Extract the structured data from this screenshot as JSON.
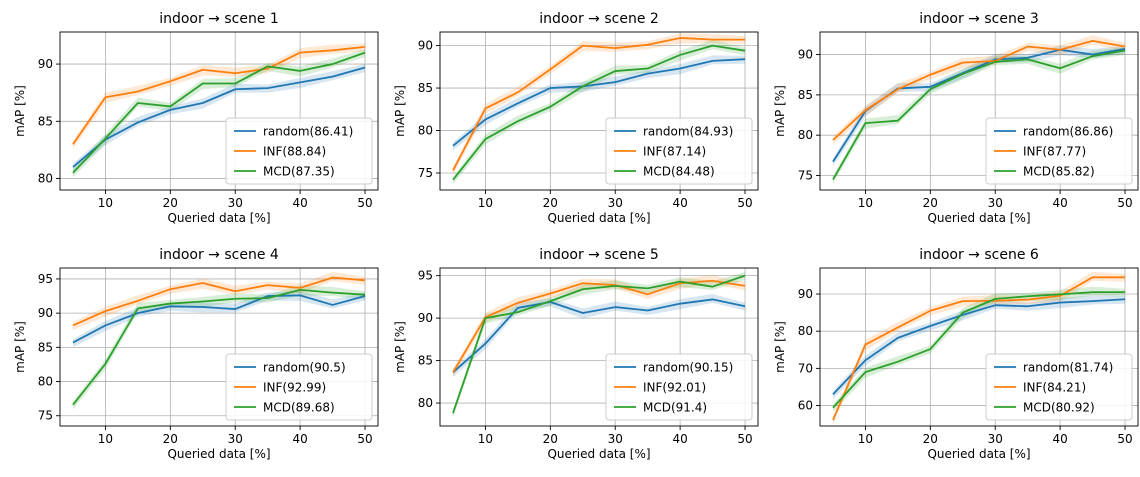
{
  "chart_data": [
    {
      "type": "line",
      "title": "indoor → scene 1",
      "xlabel": "Queried data [%]",
      "ylabel": "mAP [%]",
      "x": [
        5,
        10,
        15,
        20,
        25,
        30,
        35,
        40,
        45,
        50
      ],
      "xlim": [
        3,
        52
      ],
      "ylim": [
        79,
        92.8
      ],
      "xticks": [
        10,
        20,
        30,
        40,
        50
      ],
      "yticks": [
        80,
        85,
        90
      ],
      "grid": true,
      "legend_position": "lower-right",
      "series": [
        {
          "name": "random(86.41)",
          "color": "#1f77b4",
          "values": [
            81.0,
            83.4,
            84.9,
            86.0,
            86.6,
            87.8,
            87.9,
            88.4,
            88.9,
            89.7
          ]
        },
        {
          "name": "INF(88.84)",
          "color": "#ff7f0e",
          "values": [
            83.0,
            87.1,
            87.6,
            88.5,
            89.5,
            89.2,
            89.6,
            91.0,
            91.2,
            91.5
          ]
        },
        {
          "name": "MCD(87.35)",
          "color": "#2ca02c",
          "values": [
            80.5,
            83.5,
            86.6,
            86.3,
            88.3,
            88.3,
            89.8,
            89.4,
            90.0,
            91.0
          ]
        }
      ]
    },
    {
      "type": "line",
      "title": "indoor → scene 2",
      "xlabel": "Queried data [%]",
      "ylabel": "mAP [%]",
      "x": [
        5,
        10,
        15,
        20,
        25,
        30,
        35,
        40,
        45,
        50
      ],
      "xlim": [
        3,
        52
      ],
      "ylim": [
        73,
        91.6
      ],
      "xticks": [
        10,
        20,
        30,
        40,
        50
      ],
      "yticks": [
        75,
        80,
        85,
        90
      ],
      "grid": true,
      "legend_position": "lower-right",
      "series": [
        {
          "name": "random(84.93)",
          "color": "#1f77b4",
          "values": [
            78.2,
            81.3,
            83.2,
            85.0,
            85.2,
            85.7,
            86.7,
            87.3,
            88.2,
            88.4
          ]
        },
        {
          "name": "INF(87.14)",
          "color": "#ff7f0e",
          "values": [
            75.3,
            82.6,
            84.5,
            87.2,
            90.0,
            89.7,
            90.1,
            90.9,
            90.7,
            90.7
          ]
        },
        {
          "name": "MCD(84.48)",
          "color": "#2ca02c",
          "values": [
            74.2,
            79.0,
            81.1,
            82.8,
            85.2,
            87.0,
            87.3,
            88.9,
            90.0,
            89.4
          ]
        }
      ]
    },
    {
      "type": "line",
      "title": "indoor → scene 3",
      "xlabel": "Queried data [%]",
      "ylabel": "mAP [%]",
      "x": [
        5,
        10,
        15,
        20,
        25,
        30,
        35,
        40,
        45,
        50
      ],
      "xlim": [
        3,
        52
      ],
      "ylim": [
        73.2,
        92.8
      ],
      "xticks": [
        10,
        20,
        30,
        40,
        50
      ],
      "yticks": [
        75,
        80,
        85,
        90
      ],
      "grid": true,
      "legend_position": "lower-right",
      "series": [
        {
          "name": "random(86.86)",
          "color": "#1f77b4",
          "values": [
            76.7,
            83.0,
            85.8,
            86.0,
            87.7,
            89.4,
            89.6,
            90.6,
            90.0,
            90.7
          ]
        },
        {
          "name": "INF(87.77)",
          "color": "#ff7f0e",
          "values": [
            79.4,
            83.1,
            85.7,
            87.5,
            89.0,
            89.2,
            91.0,
            90.6,
            91.7,
            91.0
          ]
        },
        {
          "name": "MCD(85.82)",
          "color": "#2ca02c",
          "values": [
            74.5,
            81.5,
            81.8,
            85.7,
            87.6,
            89.1,
            89.4,
            88.3,
            89.8,
            90.5
          ]
        }
      ]
    },
    {
      "type": "line",
      "title": "indoor → scene 4",
      "xlabel": "Queried data [%]",
      "ylabel": "mAP [%]",
      "x": [
        5,
        10,
        15,
        20,
        25,
        30,
        35,
        40,
        45,
        50
      ],
      "xlim": [
        3,
        52
      ],
      "ylim": [
        73.5,
        96.6
      ],
      "xticks": [
        10,
        20,
        30,
        40,
        50
      ],
      "yticks": [
        75,
        80,
        85,
        90,
        95
      ],
      "grid": true,
      "legend_position": "lower-right",
      "series": [
        {
          "name": "random(90.5)",
          "color": "#1f77b4",
          "values": [
            85.7,
            88.2,
            90.0,
            91.0,
            90.9,
            90.6,
            92.5,
            92.6,
            91.2,
            92.5
          ]
        },
        {
          "name": "INF(92.99)",
          "color": "#ff7f0e",
          "values": [
            88.2,
            90.3,
            91.8,
            93.5,
            94.4,
            93.2,
            94.1,
            93.7,
            95.2,
            94.8
          ]
        },
        {
          "name": "MCD(89.68)",
          "color": "#2ca02c",
          "values": [
            76.6,
            82.6,
            90.7,
            91.4,
            91.7,
            92.1,
            92.2,
            93.4,
            93.0,
            92.7
          ]
        }
      ]
    },
    {
      "type": "line",
      "title": "indoor → scene 5",
      "xlabel": "Queried data [%]",
      "ylabel": "mAP [%]",
      "x": [
        5,
        10,
        15,
        20,
        25,
        30,
        35,
        40,
        45,
        50
      ],
      "xlim": [
        3,
        52
      ],
      "ylim": [
        77.3,
        95.9
      ],
      "xticks": [
        10,
        20,
        30,
        40,
        50
      ],
      "yticks": [
        80,
        85,
        90,
        95
      ],
      "grid": true,
      "legend_position": "lower-right",
      "series": [
        {
          "name": "random(90.15)",
          "color": "#1f77b4",
          "values": [
            83.6,
            87.0,
            91.2,
            91.9,
            90.6,
            91.3,
            90.9,
            91.7,
            92.2,
            91.4
          ]
        },
        {
          "name": "INF(92.01)",
          "color": "#ff7f0e",
          "values": [
            83.6,
            90.1,
            91.8,
            92.9,
            94.1,
            93.9,
            92.8,
            94.1,
            94.4,
            93.8
          ]
        },
        {
          "name": "MCD(91.4)",
          "color": "#2ca02c",
          "values": [
            78.8,
            90.0,
            90.7,
            92.0,
            93.4,
            93.8,
            93.5,
            94.3,
            93.7,
            95.0
          ]
        }
      ]
    },
    {
      "type": "line",
      "title": "indoor → scene 6",
      "xlabel": "Queried data [%]",
      "ylabel": "mAP [%]",
      "x": [
        5,
        10,
        15,
        20,
        25,
        30,
        35,
        40,
        45,
        50
      ],
      "xlim": [
        3,
        52
      ],
      "ylim": [
        54.5,
        97
      ],
      "xticks": [
        10,
        20,
        30,
        40,
        50
      ],
      "yticks": [
        60,
        70,
        80,
        90
      ],
      "grid": true,
      "legend_position": "lower-right",
      "series": [
        {
          "name": "random(81.74)",
          "color": "#1f77b4",
          "values": [
            63.0,
            72.2,
            78.2,
            81.4,
            84.4,
            87.0,
            86.7,
            87.7,
            88.1,
            88.6
          ]
        },
        {
          "name": "INF(84.21)",
          "color": "#ff7f0e",
          "values": [
            56.1,
            76.4,
            81.0,
            85.5,
            88.1,
            88.2,
            88.5,
            89.5,
            94.5,
            94.5
          ]
        },
        {
          "name": "MCD(80.92)",
          "color": "#2ca02c",
          "values": [
            59.4,
            69.0,
            71.8,
            75.2,
            85.0,
            88.7,
            89.4,
            89.9,
            90.5,
            90.5
          ]
        }
      ]
    }
  ]
}
